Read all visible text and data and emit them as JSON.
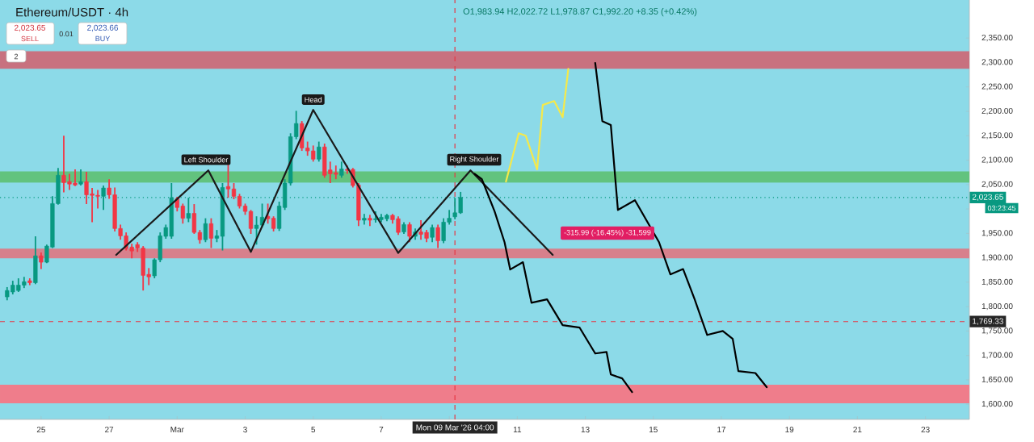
{
  "chart_data": {
    "type": "candlestick",
    "title": "Ethereum/USDT · 4h",
    "subtitle": "O1,983.94 H2,022.72 L1,978.87 C1,992.20 +8.35 (+0.42%)",
    "x": [
      "2026-02-24T00:00",
      "2026-02-24T04:00",
      "2026-02-24T08:00",
      "2026-02-24T12:00",
      "2026-02-24T16:00",
      "2026-02-24T20:00",
      "2026-02-25T00:00",
      "2026-02-25T04:00",
      "2026-02-25T08:00",
      "2026-02-25T12:00",
      "2026-02-25T16:00",
      "2026-02-25T20:00",
      "2026-02-26T00:00",
      "2026-02-26T04:00",
      "2026-02-26T08:00",
      "2026-02-26T12:00",
      "2026-02-26T16:00",
      "2026-02-26T20:00",
      "2026-02-27T00:00",
      "2026-02-27T04:00",
      "2026-02-27T08:00",
      "2026-02-27T12:00",
      "2026-02-27T16:00",
      "2026-02-27T20:00",
      "2026-02-28T00:00",
      "2026-02-28T04:00",
      "2026-02-28T08:00",
      "2026-02-28T12:00",
      "2026-02-28T16:00",
      "2026-02-28T20:00",
      "2026-03-01T00:00",
      "2026-03-01T04:00",
      "2026-03-01T08:00",
      "2026-03-01T12:00",
      "2026-03-01T16:00",
      "2026-03-01T20:00",
      "2026-03-02T00:00",
      "2026-03-02T04:00",
      "2026-03-02T08:00",
      "2026-03-02T12:00",
      "2026-03-02T16:00",
      "2026-03-02T20:00",
      "2026-03-03T00:00",
      "2026-03-03T04:00",
      "2026-03-03T08:00",
      "2026-03-03T12:00",
      "2026-03-03T16:00",
      "2026-03-03T20:00",
      "2026-03-04T00:00",
      "2026-03-04T04:00",
      "2026-03-04T08:00",
      "2026-03-04T12:00",
      "2026-03-04T16:00",
      "2026-03-04T20:00",
      "2026-03-05T00:00",
      "2026-03-05T04:00",
      "2026-03-05T08:00",
      "2026-03-05T12:00",
      "2026-03-05T16:00",
      "2026-03-05T20:00",
      "2026-03-06T00:00",
      "2026-03-06T04:00",
      "2026-03-06T08:00",
      "2026-03-06T12:00",
      "2026-03-06T16:00",
      "2026-03-06T20:00",
      "2026-03-07T00:00",
      "2026-03-07T04:00",
      "2026-03-07T08:00",
      "2026-03-07T12:00",
      "2026-03-07T16:00",
      "2026-03-07T20:00",
      "2026-03-08T00:00",
      "2026-03-08T04:00",
      "2026-03-08T08:00",
      "2026-03-08T12:00",
      "2026-03-08T16:00",
      "2026-03-08T20:00",
      "2026-03-09T00:00",
      "2026-03-09T04:00",
      "2026-03-09T08:00"
    ],
    "ohlc": [
      [
        1820,
        1840,
        1813,
        1833
      ],
      [
        1830,
        1853,
        1825,
        1844
      ],
      [
        1833,
        1858,
        1830,
        1844
      ],
      [
        1844,
        1861,
        1838,
        1851
      ],
      [
        1853,
        1858,
        1844,
        1849
      ],
      [
        1849,
        1944,
        1846,
        1904
      ],
      [
        1904,
        1911,
        1877,
        1891
      ],
      [
        1891,
        1927,
        1889,
        1924
      ],
      [
        1922,
        2026,
        1920,
        2011
      ],
      [
        2011,
        2084,
        2009,
        2069
      ],
      [
        2069,
        2150,
        2034,
        2054
      ],
      [
        2056,
        2072,
        2039,
        2051
      ],
      [
        2053,
        2081,
        2047,
        2049
      ],
      [
        2051,
        2081,
        2048,
        2056
      ],
      [
        2056,
        2076,
        2010,
        2029
      ],
      [
        2031,
        2043,
        1973,
        2028
      ],
      [
        2028,
        2039,
        2001,
        2026
      ],
      [
        2026,
        2048,
        1998,
        2043
      ],
      [
        2043,
        2061,
        2021,
        2029
      ],
      [
        2029,
        2044,
        1954,
        1960
      ],
      [
        1960,
        1968,
        1937,
        1945
      ],
      [
        1945,
        1952,
        1915,
        1919
      ],
      [
        1922,
        1929,
        1899,
        1914
      ],
      [
        1927,
        1932,
        1912,
        1920
      ],
      [
        1920,
        1924,
        1833,
        1864
      ],
      [
        1866,
        1879,
        1844,
        1861
      ],
      [
        1863,
        1899,
        1858,
        1896
      ],
      [
        1896,
        1952,
        1891,
        1945
      ],
      [
        1944,
        1968,
        1939,
        1962
      ],
      [
        1944,
        2053,
        1939,
        2023
      ],
      [
        2021,
        2025,
        1995,
        2003
      ],
      [
        2006,
        2011,
        1970,
        1981
      ],
      [
        1981,
        2023,
        1973,
        1991
      ],
      [
        1991,
        2010,
        1949,
        1952
      ],
      [
        1952,
        1957,
        1929,
        1937
      ],
      [
        1937,
        1981,
        1932,
        1970
      ],
      [
        1970,
        1981,
        1920,
        1940
      ],
      [
        1940,
        1957,
        1932,
        1945
      ],
      [
        1944,
        2053,
        1915,
        2044
      ],
      [
        2046,
        2092,
        2023,
        2041
      ],
      [
        2041,
        2053,
        2020,
        2026
      ],
      [
        2026,
        2031,
        2001,
        2006
      ],
      [
        2006,
        2011,
        1988,
        1995
      ],
      [
        1995,
        1998,
        1949,
        1960
      ],
      [
        1960,
        1985,
        1927,
        1967
      ],
      [
        1967,
        2011,
        1962,
        1983
      ],
      [
        1985,
        2011,
        1970,
        1980
      ],
      [
        1981,
        1985,
        1954,
        1960
      ],
      [
        1960,
        2015,
        1955,
        2006
      ],
      [
        2003,
        2061,
        1998,
        2053
      ],
      [
        2053,
        2155,
        2048,
        2148
      ],
      [
        2148,
        2201,
        2143,
        2175
      ],
      [
        2175,
        2180,
        2119,
        2125
      ],
      [
        2125,
        2138,
        2109,
        2119
      ],
      [
        2119,
        2130,
        2097,
        2102
      ],
      [
        2102,
        2138,
        2097,
        2127
      ],
      [
        2127,
        2134,
        2064,
        2069
      ],
      [
        2080,
        2097,
        2053,
        2072
      ],
      [
        2074,
        2089,
        2061,
        2071
      ],
      [
        2069,
        2097,
        2064,
        2082
      ],
      [
        2081,
        2089,
        2072,
        2079
      ],
      [
        2081,
        2084,
        2044,
        2048
      ],
      [
        2049,
        2053,
        1965,
        1977
      ],
      [
        1977,
        1990,
        1968,
        1981
      ],
      [
        1981,
        1988,
        1965,
        1977
      ],
      [
        1978,
        1995,
        1972,
        1980
      ],
      [
        1978,
        1990,
        1973,
        1983
      ],
      [
        1980,
        1990,
        1975,
        1987
      ],
      [
        1987,
        1990,
        1970,
        1978
      ],
      [
        1980,
        1985,
        1947,
        1952
      ],
      [
        1953,
        1973,
        1949,
        1968
      ],
      [
        1968,
        1973,
        1932,
        1944
      ],
      [
        1944,
        1960,
        1937,
        1953
      ],
      [
        1953,
        1977,
        1937,
        1948
      ],
      [
        1952,
        1957,
        1932,
        1940
      ],
      [
        1942,
        1968,
        1932,
        1962
      ],
      [
        1962,
        1968,
        1920,
        1935
      ],
      [
        1935,
        1981,
        1930,
        1973
      ],
      [
        1973,
        1998,
        1968,
        1981
      ],
      [
        1983.94,
        2022.72,
        1978.87,
        1992.2
      ],
      [
        1992.2,
        2035,
        1990,
        2023.65
      ]
    ],
    "colors": [
      "#089981",
      "#089981",
      "#089981",
      "#089981",
      "#f23645",
      "#089981",
      "#f23645",
      "#089981",
      "#089981",
      "#089981",
      "#f23645",
      "#f23645",
      "#f23645",
      "#089981",
      "#f23645",
      "#f23645",
      "#f23645",
      "#089981",
      "#f23645",
      "#f23645",
      "#f23645",
      "#f23645",
      "#f23645",
      "#f23645",
      "#f23645",
      "#f23645",
      "#089981",
      "#089981",
      "#089981",
      "#089981",
      "#f23645",
      "#f23645",
      "#089981",
      "#f23645",
      "#f23645",
      "#089981",
      "#f23645",
      "#089981",
      "#089981",
      "#f23645",
      "#f23645",
      "#f23645",
      "#f23645",
      "#f23645",
      "#089981",
      "#089981",
      "#f23645",
      "#f23645",
      "#089981",
      "#089981",
      "#089981",
      "#089981",
      "#f23645",
      "#f23645",
      "#f23645",
      "#089981",
      "#f23645",
      "#f23645",
      "#f23645",
      "#089981",
      "#f23645",
      "#f23645",
      "#f23645",
      "#089981",
      "#f23645",
      "#089981",
      "#089981",
      "#089981",
      "#f23645",
      "#f23645",
      "#089981",
      "#f23645",
      "#089981",
      "#f23645",
      "#f23645",
      "#089981",
      "#f23645",
      "#089981",
      "#089981",
      "#089981",
      "#089981"
    ],
    "series": [
      {
        "type": "line",
        "color": "#1a1a1a",
        "x": [
          "2026-02-27T05:00",
          "2026-03-01T22:00",
          "2026-03-03T04:00",
          "2026-03-05T00:00",
          "2026-03-07T12:00",
          "2026-03-09T15:00",
          "2026-03-12T01:00"
        ],
        "values": [
          1906,
          2079,
          1912,
          2203,
          1910,
          2079,
          1906
        ]
      },
      {
        "type": "line",
        "color": "#000000",
        "x": [
          "2026-03-09T18:00",
          "2026-03-09T23:00",
          "2026-03-10T08:00",
          "2026-03-10T15:00",
          "2026-03-10T19:00",
          "2026-03-11T04:00",
          "2026-03-11T10:00",
          "2026-03-11T21:00",
          "2026-03-12T08:00",
          "2026-03-12T20:00",
          "2026-03-13T07:00",
          "2026-03-13T15:00",
          "2026-03-13T18:00",
          "2026-03-14T02:00",
          "2026-03-14T09:00"
        ],
        "values": [
          2072,
          2061,
          1995,
          1932,
          1876,
          1891,
          1808,
          1815,
          1762,
          1757,
          1704,
          1707,
          1661,
          1653,
          1625
        ]
      },
      {
        "type": "line",
        "color": "#000000",
        "x": [
          "2026-03-13T07:00",
          "2026-03-13T12:00",
          "2026-03-13T18:00",
          "2026-03-13T23:00",
          "2026-03-14T11:00",
          "2026-03-15T04:00",
          "2026-03-15T12:00",
          "2026-03-15T21:00",
          "2026-03-16T05:00",
          "2026-03-16T14:00",
          "2026-03-17T01:00",
          "2026-03-17T08:00",
          "2026-03-17T12:00",
          "2026-03-18T00:00",
          "2026-03-18T08:00"
        ],
        "values": [
          2299,
          2180,
          2172,
          1998,
          2018,
          1932,
          1866,
          1877,
          1816,
          1742,
          1750,
          1734,
          1668,
          1664,
          1635
        ]
      },
      {
        "type": "line",
        "color": "#f5e94a",
        "x": [
          "2026-03-10T16:00",
          "2026-03-11T01:00",
          "2026-03-11T06:00",
          "2026-03-11T14:00",
          "2026-03-11T18:00",
          "2026-03-12T02:00",
          "2026-03-12T08:00",
          "2026-03-12T12:00"
        ],
        "values": [
          2056,
          2155,
          2150,
          2081,
          2213,
          2221,
          2188,
          2287
        ]
      }
    ],
    "xlim": [
      "2026-02-23T19:00",
      "2026-03-24T07:00"
    ],
    "xticks": [
      {
        "value": "2026-02-25",
        "label": "25"
      },
      {
        "value": "2026-02-27",
        "label": "27"
      },
      {
        "value": "2026-03-01",
        "label": "Mar"
      },
      {
        "value": "2026-03-03",
        "label": "3"
      },
      {
        "value": "2026-03-05",
        "label": "5"
      },
      {
        "value": "2026-03-07",
        "label": "7"
      },
      {
        "value": "2026-03-09",
        "label": null
      },
      {
        "value": "2026-03-11",
        "label": "11"
      },
      {
        "value": "2026-03-13",
        "label": "13"
      },
      {
        "value": "2026-03-15",
        "label": "15"
      },
      {
        "value": "2026-03-17",
        "label": "17"
      },
      {
        "value": "2026-03-19",
        "label": "19"
      },
      {
        "value": "2026-03-21",
        "label": "21"
      },
      {
        "value": "2026-03-23",
        "label": "23"
      }
    ],
    "ylim": [
      1569,
      2428
    ],
    "yticks": [
      {
        "value": 1600,
        "label": "1,600.00"
      },
      {
        "value": 1650,
        "label": "1,650.00"
      },
      {
        "value": 1700,
        "label": "1,700.00"
      },
      {
        "value": 1750,
        "label": "1,750.00"
      },
      {
        "value": 1800,
        "label": "1,800.00"
      },
      {
        "value": 1850,
        "label": "1,850.00"
      },
      {
        "value": 1900,
        "label": "1,900.00"
      },
      {
        "value": 1950,
        "label": "1,950.00"
      },
      {
        "value": 2000,
        "label": null
      },
      {
        "value": 2050,
        "label": "2,050.00"
      },
      {
        "value": 2100,
        "label": "2,100.00"
      },
      {
        "value": 2150,
        "label": "2,150.00"
      },
      {
        "value": 2200,
        "label": "2,200.00"
      },
      {
        "value": 2250,
        "label": "2,250.00"
      },
      {
        "value": 2300,
        "label": "2,300.00"
      },
      {
        "value": 2350,
        "label": "2,350.00"
      }
    ],
    "bands": [
      {
        "axis": "y",
        "from": 2287,
        "to": 2323,
        "color": "#c8717f"
      },
      {
        "axis": "y",
        "from": 2054,
        "to": 2077,
        "color": "#62c37e"
      },
      {
        "axis": "y",
        "from": 1899,
        "to": 1919,
        "color": "#d7808c"
      },
      {
        "axis": "y",
        "from": 1602,
        "to": 1640,
        "color": "#ef7d8b"
      }
    ],
    "ref_lines": [
      {
        "axis": "y",
        "value": 2023.65,
        "label": "2,023.65",
        "color": "#089981",
        "line_style": "dotted"
      },
      {
        "axis": "y",
        "value": 1769.33,
        "label": "1,769.33",
        "color": "#e53945",
        "line_style": "dashed"
      },
      {
        "axis": "x",
        "value": "2026-03-09T04:00",
        "label": "Mon 09 Mar '26 04:00",
        "color": "#e53945",
        "line_style": "dashed"
      }
    ],
    "annotations": [
      "2,023.65",
      "SELL",
      "0.01",
      "2,023.66",
      "BUY",
      "2",
      "03:23:45",
      "Left Shoulder",
      {
        "text": "Head",
        "x": "2026-03-05T00:00",
        "y": 2224
      },
      "Right Shoulder",
      "-315.99 (-16.45%) -31,599"
    ]
  }
}
